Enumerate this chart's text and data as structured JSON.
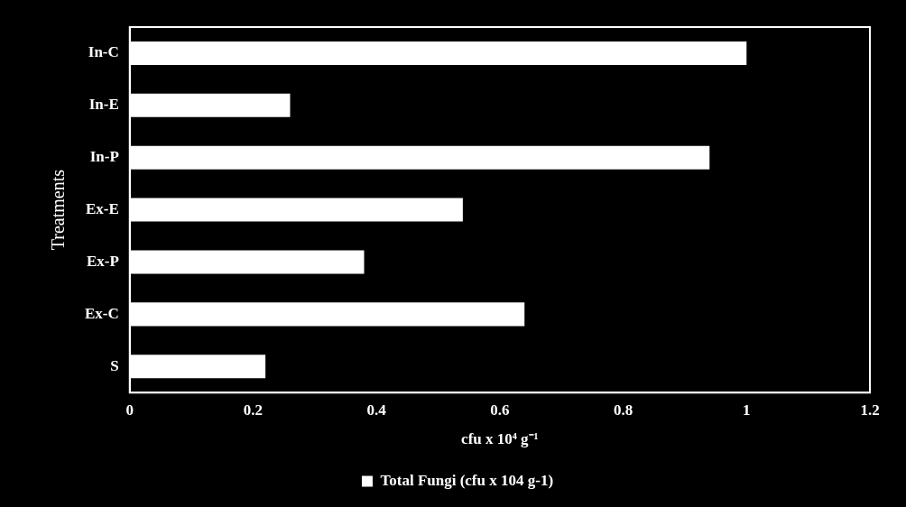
{
  "chart_data": {
    "type": "bar",
    "orientation": "horizontal",
    "categories": [
      "In-C",
      "In-E",
      "In-P",
      "Ex-E",
      "Ex-P",
      "Ex-C",
      "S"
    ],
    "series": [
      {
        "name": "Total Fungi (cfu x 104 g-1)",
        "color": "#ffffff",
        "values": [
          1.0,
          0.26,
          0.94,
          0.54,
          0.38,
          0.64,
          0.22
        ]
      }
    ],
    "xlim": [
      0,
      1.2
    ],
    "xticks": [
      0,
      0.2,
      0.4,
      0.6,
      0.8,
      1,
      1.2
    ],
    "xlabel": "cfu x 10⁴ g⁻¹",
    "ylabel": "Treatments",
    "legend": "bottom",
    "grid": false
  }
}
